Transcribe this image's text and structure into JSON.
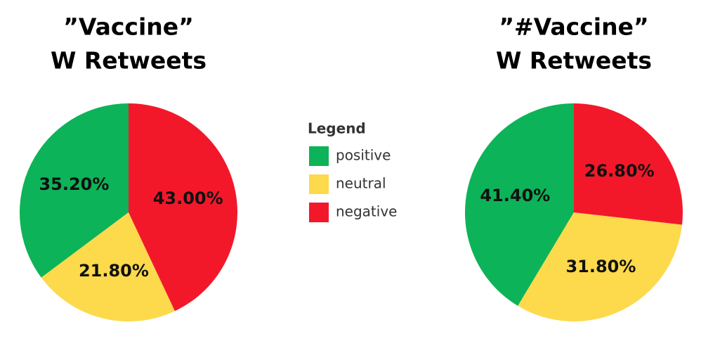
{
  "chart_data": [
    {
      "type": "pie",
      "title": [
        "”Vaccine”",
        "W Retweets"
      ],
      "categories": [
        "positive",
        "neutral",
        "negative"
      ],
      "values": [
        35.2,
        21.8,
        43.0
      ],
      "value_labels": [
        "35.20%",
        "21.80%",
        "43.00%"
      ],
      "colors": [
        "#0db358",
        "#fdd94c",
        "#f2182a"
      ]
    },
    {
      "type": "pie",
      "title": [
        "”#Vaccine”",
        "W Retweets"
      ],
      "categories": [
        "positive",
        "neutral",
        "negative"
      ],
      "values": [
        41.4,
        31.8,
        26.8
      ],
      "value_labels": [
        "41.40%",
        "31.80%",
        "26.80%"
      ],
      "colors": [
        "#0db358",
        "#fdd94c",
        "#f2182a"
      ]
    }
  ],
  "legend": {
    "title": "Legend"
  }
}
